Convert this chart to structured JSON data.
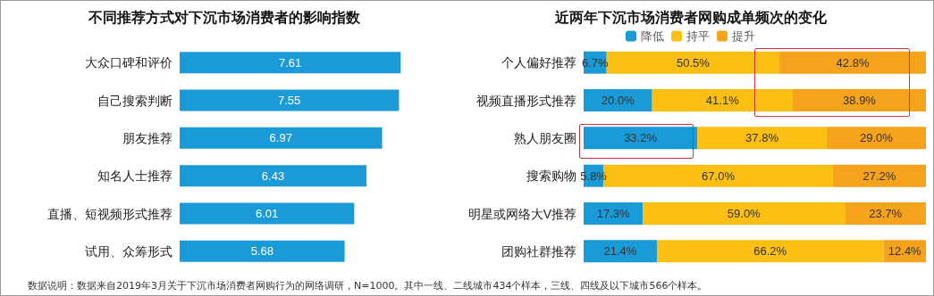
{
  "chart_data": [
    {
      "type": "bar",
      "orientation": "horizontal",
      "title": "不同推荐方式对下沉市场消费者的影响指数",
      "categories": [
        "大众口碑和评价",
        "自己搜索判断",
        "朋友推荐",
        "知名人士推荐",
        "直播、短视频形式推荐",
        "试用、众筹形式"
      ],
      "values": [
        7.61,
        7.55,
        6.97,
        6.43,
        6.01,
        5.68
      ],
      "color": "#1a9ad6",
      "data_labels": true,
      "annotations": [
        "数据说明：数据来自2019年3月关于下沉市场消费者网购行为的网络调研，N=1000。其中一线、二线城市434个样本，三线、四线及以下城市566个样本。"
      ]
    },
    {
      "type": "bar",
      "orientation": "horizontal",
      "stacked": true,
      "title": "近两年下沉市场消费者网购成单频次的变化",
      "categories": [
        "个人偏好推荐",
        "视频直播形式推荐",
        "熟人朋友圈",
        "搜索购物",
        "明星或网络大V推荐",
        "团购社群推荐"
      ],
      "legend": "top",
      "series": [
        {
          "name": "降低",
          "color": "#1a9ad6",
          "values": [
            6.7,
            20.0,
            33.2,
            5.8,
            17.3,
            21.4
          ],
          "value_labels": [
            "6.7%",
            "20.0%",
            "33.2%",
            "5.8%",
            "17.3%",
            "21.4%"
          ]
        },
        {
          "name": "持平",
          "color": "#fbbf14",
          "values": [
            50.5,
            41.1,
            37.8,
            67.0,
            59.0,
            66.2
          ],
          "value_labels": [
            "50.5%",
            "41.1%",
            "37.8%",
            "67.0%",
            "59.0%",
            "66.2%"
          ]
        },
        {
          "name": "提升",
          "color": "#f5a21c",
          "values": [
            42.8,
            38.9,
            29.0,
            27.2,
            23.7,
            12.4
          ],
          "value_labels": [
            "42.8%",
            "38.9%",
            "29.0%",
            "27.2%",
            "23.7%",
            "12.4%"
          ]
        }
      ]
    }
  ]
}
